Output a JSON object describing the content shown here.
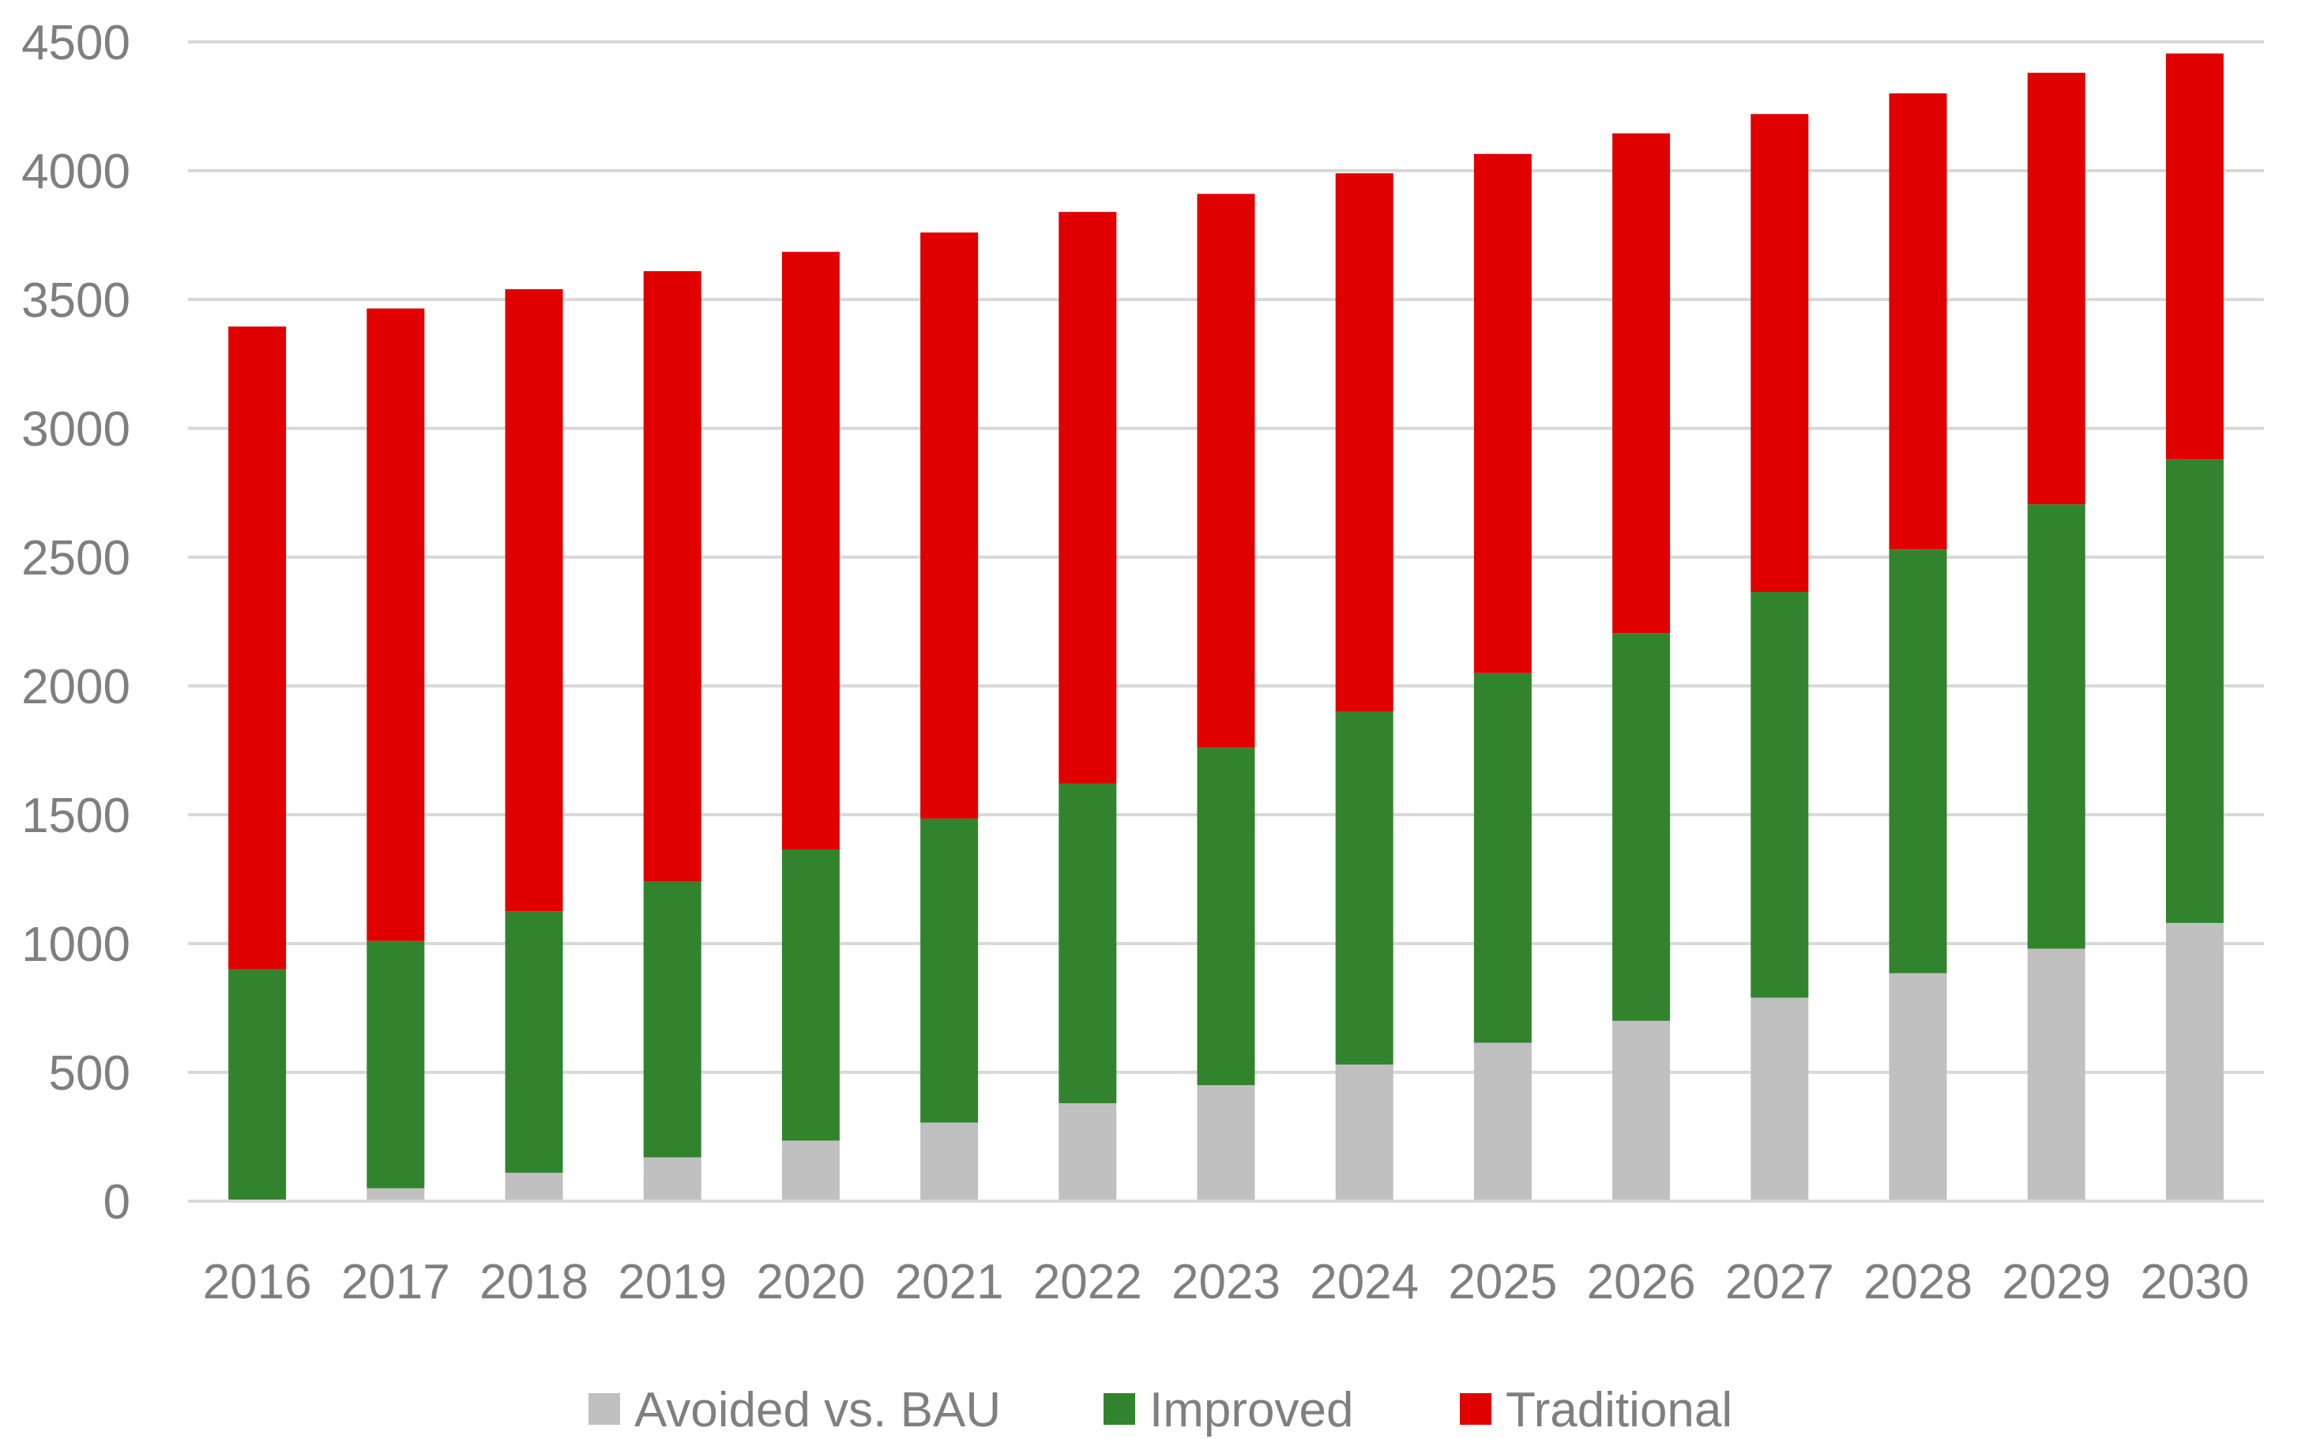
{
  "chart_data": {
    "type": "bar",
    "stacked": true,
    "title": "",
    "xlabel": "",
    "ylabel": "",
    "categories": [
      "2016",
      "2017",
      "2018",
      "2019",
      "2020",
      "2021",
      "2022",
      "2023",
      "2024",
      "2025",
      "2026",
      "2027",
      "2028",
      "2029",
      "2030"
    ],
    "ylim": [
      0,
      4500
    ],
    "yticks": [
      0,
      500,
      1000,
      1500,
      2000,
      2500,
      3000,
      3500,
      4000,
      4500
    ],
    "ytick_labels": [
      "0",
      "500",
      "1000",
      "1500",
      "2000",
      "2500",
      "3000",
      "3500",
      "4000",
      "4500"
    ],
    "grid": true,
    "legend_position": "bottom",
    "series": [
      {
        "name": "Avoided vs. BAU",
        "color": "#c0c0c0",
        "values": [
          0,
          50,
          110,
          170,
          235,
          305,
          380,
          450,
          530,
          615,
          700,
          790,
          885,
          980,
          1080
        ]
      },
      {
        "name": "Improved",
        "color": "#31842d",
        "values": [
          900,
          960,
          1015,
          1070,
          1130,
          1180,
          1240,
          1310,
          1370,
          1435,
          1505,
          1575,
          1645,
          1725,
          1800
        ]
      },
      {
        "name": "Traditional",
        "color": "#e00000",
        "values": [
          2495,
          2455,
          2415,
          2370,
          2320,
          2275,
          2220,
          2150,
          2090,
          2015,
          1940,
          1855,
          1770,
          1675,
          1575
        ]
      }
    ]
  }
}
